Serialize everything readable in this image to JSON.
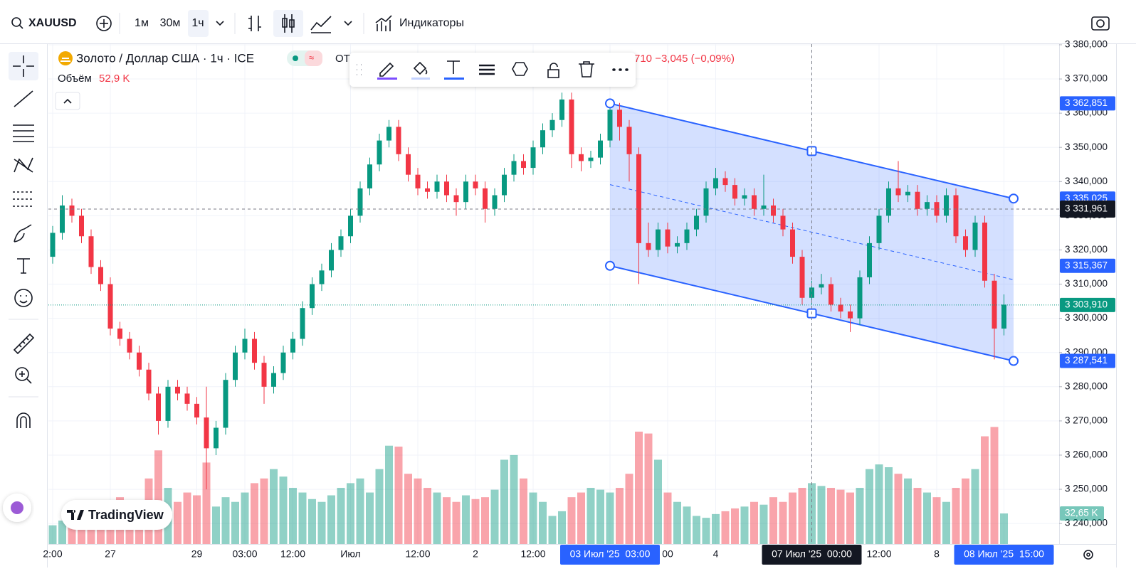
{
  "toolbar": {
    "symbol": "XAUUSD",
    "intervals": [
      "1м",
      "30м",
      "1ч"
    ],
    "indicators": "Индикаторы"
  },
  "legend": {
    "title": "Золото / Доллар США · 1ч · ICE",
    "ohlc_prefix": "ОТ",
    "change": "710  −3,045 (−0,09%)",
    "volume_label": "Объём",
    "volume_value": "52,9 K"
  },
  "logo": "TradingView",
  "chart_data": {
    "type": "candlestick",
    "up_color": "#089981",
    "down_color": "#f23645",
    "categories": [
      "2:00",
      null,
      null,
      null,
      null,
      null,
      "27",
      null,
      null,
      null,
      null,
      null,
      null,
      null,
      null,
      "29",
      null,
      null,
      null,
      null,
      "03:00",
      null,
      null,
      null,
      null,
      "12:00",
      null,
      null,
      null,
      null,
      null,
      "Июл",
      null,
      null,
      null,
      null,
      null,
      null,
      "12:00",
      null,
      null,
      null,
      null,
      null,
      "2",
      null,
      null,
      null,
      null,
      null,
      "12:00",
      null,
      null,
      null,
      null,
      null,
      null,
      null,
      "03 Июл '25  03:00",
      null,
      null,
      null,
      null,
      null,
      "00",
      null,
      null,
      null,
      null,
      "4",
      null,
      null,
      null,
      null,
      null,
      null,
      null,
      null,
      null,
      "07 Июл '25  00:00",
      null,
      null,
      null,
      null,
      null,
      null,
      "12:00",
      null,
      null,
      null,
      null,
      null,
      "8",
      null,
      null,
      null,
      null,
      null,
      null,
      "08 Июл '25  15:00"
    ],
    "x_highlights": [
      58,
      79,
      99
    ],
    "open": [
      3318,
      3325,
      3333,
      3330,
      3324,
      3315,
      3310,
      3297,
      3294,
      3290,
      3285,
      3278,
      3270,
      3280,
      3278,
      3275,
      3271,
      3262,
      3268,
      3282,
      3290,
      3294,
      3287,
      3280,
      3284,
      3290,
      3294,
      3303,
      3310,
      3314,
      3320,
      3324,
      3330,
      3338,
      3345,
      3352,
      3356,
      3348,
      3342,
      3338,
      3337,
      3340,
      3336,
      3334,
      3340,
      3338,
      3332,
      3336,
      3342,
      3346,
      3344,
      3350,
      3355,
      3358,
      3364,
      3348,
      3346,
      3347,
      3352,
      3361,
      3356,
      3348,
      3322,
      3320,
      3326,
      3321,
      3322,
      3326,
      3330,
      3338,
      3341,
      3339,
      3335,
      3336,
      3332,
      3333,
      3330,
      3326,
      3318,
      3306,
      3309,
      3310,
      3304,
      3302,
      3300,
      3312,
      3322,
      3330,
      3338,
      3336,
      3337,
      3332,
      3334,
      3330,
      3336,
      3324,
      3320,
      3328,
      3311,
      3297
    ],
    "high": [
      3327,
      3336,
      3335,
      3332,
      3326,
      3317,
      3312,
      3299,
      3296,
      3292,
      3287,
      3280,
      3282,
      3282,
      3280,
      3277,
      3280,
      3270,
      3284,
      3292,
      3297,
      3296,
      3289,
      3286,
      3292,
      3296,
      3305,
      3312,
      3316,
      3322,
      3326,
      3332,
      3340,
      3347,
      3354,
      3358,
      3358,
      3350,
      3344,
      3340,
      3342,
      3342,
      3338,
      3342,
      3342,
      3340,
      3338,
      3344,
      3348,
      3348,
      3352,
      3357,
      3360,
      3366,
      3366,
      3350,
      3349,
      3354,
      3363,
      3363,
      3358,
      3350,
      3328,
      3328,
      3328,
      3324,
      3328,
      3332,
      3340,
      3344,
      3343,
      3341,
      3338,
      3338,
      3342,
      3335,
      3332,
      3328,
      3320,
      3311,
      3313,
      3312,
      3306,
      3304,
      3314,
      3324,
      3332,
      3340,
      3346,
      3339,
      3339,
      3336,
      3336,
      3338,
      3338,
      3326,
      3330,
      3330,
      3313,
      3307
    ],
    "low": [
      3316,
      3323,
      3328,
      3322,
      3313,
      3308,
      3295,
      3292,
      3288,
      3283,
      3276,
      3266,
      3268,
      3276,
      3273,
      3269,
      3250,
      3260,
      3266,
      3280,
      3288,
      3285,
      3275,
      3278,
      3282,
      3288,
      3292,
      3301,
      3308,
      3312,
      3318,
      3322,
      3328,
      3336,
      3343,
      3350,
      3346,
      3340,
      3336,
      3335,
      3335,
      3334,
      3330,
      3332,
      3336,
      3328,
      3330,
      3334,
      3340,
      3342,
      3342,
      3348,
      3353,
      3356,
      3344,
      3343,
      3344,
      3345,
      3350,
      3352,
      3340,
      3310,
      3318,
      3318,
      3319,
      3319,
      3320,
      3324,
      3328,
      3336,
      3337,
      3333,
      3333,
      3330,
      3330,
      3328,
      3324,
      3316,
      3304,
      3304,
      3307,
      3302,
      3300,
      3296,
      3298,
      3310,
      3320,
      3328,
      3334,
      3334,
      3330,
      3330,
      3328,
      3328,
      3322,
      3318,
      3318,
      3309,
      3288,
      3295
    ],
    "close": [
      3325,
      3333,
      3330,
      3324,
      3315,
      3310,
      3297,
      3294,
      3290,
      3285,
      3278,
      3270,
      3280,
      3278,
      3275,
      3271,
      3262,
      3268,
      3282,
      3290,
      3294,
      3287,
      3280,
      3284,
      3290,
      3294,
      3303,
      3310,
      3314,
      3320,
      3324,
      3330,
      3338,
      3345,
      3352,
      3356,
      3348,
      3342,
      3338,
      3337,
      3340,
      3336,
      3334,
      3340,
      3338,
      3332,
      3336,
      3342,
      3346,
      3344,
      3350,
      3355,
      3358,
      3364,
      3348,
      3346,
      3347,
      3352,
      3361,
      3356,
      3348,
      3322,
      3320,
      3326,
      3321,
      3322,
      3326,
      3330,
      3338,
      3341,
      3339,
      3335,
      3336,
      3332,
      3333,
      3330,
      3326,
      3318,
      3306,
      3309,
      3310,
      3304,
      3302,
      3300,
      3312,
      3322,
      3330,
      3338,
      3336,
      3337,
      3332,
      3334,
      3330,
      3336,
      3324,
      3320,
      3328,
      3311,
      3297,
      3304
    ],
    "volume": [
      20,
      25,
      30,
      35,
      28,
      40,
      45,
      50,
      42,
      38,
      70,
      100,
      60,
      45,
      55,
      52,
      87,
      40,
      50,
      45,
      55,
      65,
      70,
      80,
      72,
      60,
      55,
      48,
      45,
      52,
      60,
      65,
      70,
      55,
      80,
      105,
      104,
      75,
      70,
      60,
      55,
      50,
      45,
      52,
      48,
      50,
      58,
      90,
      95,
      70,
      55,
      45,
      30,
      35,
      50,
      55,
      60,
      58,
      55,
      60,
      75,
      120,
      118,
      90,
      55,
      45,
      40,
      30,
      28,
      32,
      35,
      38,
      40,
      45,
      42,
      50,
      45,
      55,
      60,
      65,
      62,
      60,
      58,
      55,
      60,
      80,
      85,
      82,
      75,
      70,
      60,
      55,
      50,
      45,
      60,
      70,
      80,
      115,
      125,
      32.65
    ],
    "volume_label": {
      "value": 32.65,
      "label": "32,65 K"
    },
    "ylim": [
      3234,
      3380.2
    ],
    "yticks": [
      {
        "value": 3240,
        "label": "3 240,000"
      },
      {
        "value": 3250,
        "label": "3 250,000"
      },
      {
        "value": 3260,
        "label": "3 260,000"
      },
      {
        "value": 3270,
        "label": "3 270,000"
      },
      {
        "value": 3280,
        "label": "3 280,000"
      },
      {
        "value": 3290,
        "label": "3 290,000"
      },
      {
        "value": 3300,
        "label": "3 300,000"
      },
      {
        "value": 3310,
        "label": "3 310,000"
      },
      {
        "value": 3320,
        "label": "3 320,000"
      },
      {
        "value": 3330,
        "label": "3 330,000"
      },
      {
        "value": 3340,
        "label": "3 340,000"
      },
      {
        "value": 3350,
        "label": "3 350,000"
      },
      {
        "value": 3360,
        "label": "3 360,000"
      },
      {
        "value": 3370,
        "label": "3 370,000"
      },
      {
        "value": 3380,
        "label": "3 380,000"
      }
    ],
    "grid": true,
    "channel": {
      "color": "#2962ff",
      "start": 58,
      "end": 100,
      "top": [
        3362.851,
        3335.025
      ],
      "bottom": [
        3315.367,
        3287.541
      ],
      "labels": [
        {
          "value": 3362.851,
          "label": "3 362,851"
        },
        {
          "value": 3335.025,
          "label": "3 335,025"
        },
        {
          "value": 3315.367,
          "label": "3 315,367"
        },
        {
          "value": 3287.541,
          "label": "3 287,541"
        }
      ]
    },
    "current_price": {
      "value": 3303.91,
      "label": "3 303,910",
      "color": "#089981"
    },
    "crosshair": {
      "x": 79,
      "y": 3331.961,
      "label": "3 331,961"
    }
  }
}
